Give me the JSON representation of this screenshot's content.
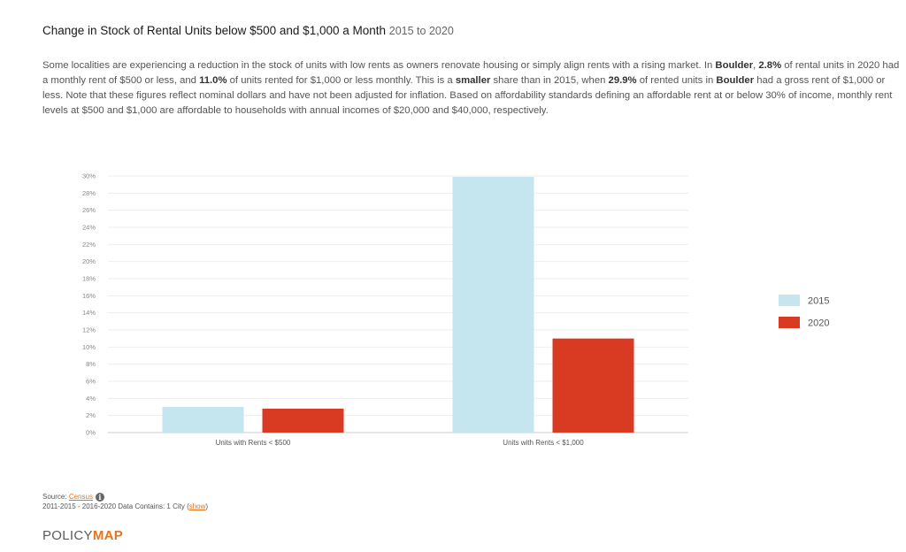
{
  "header": {
    "title": "Change in Stock of Rental Units below $500 and $1,000 a Month",
    "years": "2015 to 2020"
  },
  "description": {
    "p1": "Some localities are experiencing a reduction in the stock of units with low rents as owners renovate housing or simply align rents with a rising market. In ",
    "b1": "Boulder",
    "p2": ", ",
    "b2": "2.8%",
    "p3": " of rental units in 2020 had a monthly rent of $500 or less, and ",
    "b3": "11.0%",
    "p4": " of units rented for $1,000 or less monthly. This is a ",
    "b4": "smaller",
    "p5": " share than in 2015, when ",
    "b5": "29.9%",
    "p6": " of rented units in ",
    "b6": "Boulder",
    "p7": " had a gross rent of $1,000 or less. Note that these figures reflect nominal dollars and have not been adjusted for inflation. Based on affordability standards defining an affordable rent at or below 30% of income, monthly rent levels at $500 and $1,000 are affordable to households with annual incomes of $20,000 and $40,000, respectively."
  },
  "chart_data": {
    "type": "bar",
    "categories": [
      "Units with Rents < $500",
      "Units with Rents < $1,000"
    ],
    "series": [
      {
        "name": "2015",
        "color": "#c6e6ef",
        "values": [
          3.0,
          29.9
        ]
      },
      {
        "name": "2020",
        "color": "#d83a22",
        "values": [
          2.8,
          11.0
        ]
      }
    ],
    "ylim": [
      0,
      30
    ],
    "yticks": [
      "0%",
      "2%",
      "4%",
      "6%",
      "8%",
      "10%",
      "12%",
      "14%",
      "16%",
      "18%",
      "20%",
      "22%",
      "24%",
      "26%",
      "28%",
      "30%"
    ],
    "grid": true,
    "legend_position": "right"
  },
  "footer": {
    "source_label": "Source:",
    "source_link": "Census",
    "info_icon": "info-icon",
    "data_note_prefix": "2011-2015 - 2016-2020 Data Contains: 1 City (",
    "show_link": "show",
    "data_note_suffix": ")",
    "logo_part1": "POLICY",
    "logo_part2": "MAP"
  }
}
